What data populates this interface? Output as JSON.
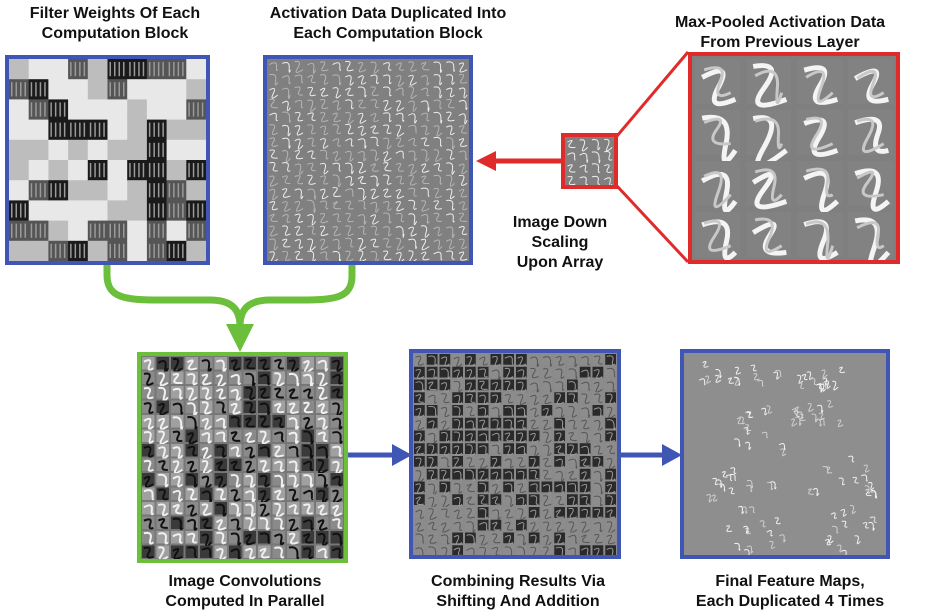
{
  "labels": {
    "filter_weights": "Filter Weights Of Each\nComputation Block",
    "activation_dup": "Activation Data Duplicated Into\nEach Computation Block",
    "max_pooled": "Max-Pooled Activation Data\nFrom Previous Layer",
    "downscale": "Image Down\nScaling\nUpon Array",
    "convolutions": "Image Convolutions\nComputed In Parallel",
    "combining": "Combining Results Via\nShifting And Addition",
    "final_maps": "Final Feature Maps,\nEach Duplicated 4 Times"
  },
  "colors": {
    "blue_border": "#3f56b4",
    "red_border": "#e02b2b",
    "green_border": "#6cbf3a",
    "panel_gray": "#7d7d7d"
  }
}
